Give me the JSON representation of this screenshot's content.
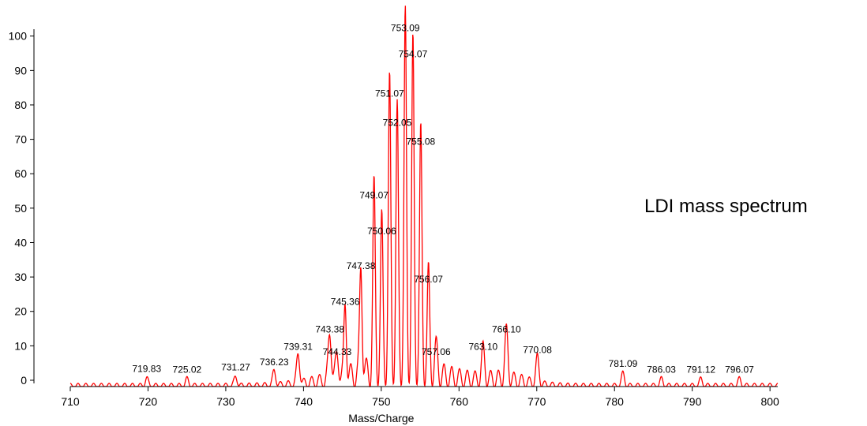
{
  "chart_data": {
    "type": "line",
    "title": "",
    "xlabel": "Mass/Charge",
    "ylabel": "",
    "xlim": [
      710,
      801
    ],
    "ylim": [
      0,
      102
    ],
    "x_ticks": [
      710,
      720,
      730,
      740,
      750,
      760,
      770,
      780,
      790,
      800
    ],
    "y_ticks": [
      0,
      10,
      20,
      30,
      40,
      50,
      60,
      70,
      80,
      90,
      100
    ],
    "line_color": "#ff0000",
    "grid": false,
    "annotation": "LDI mass spectrum",
    "peaks": [
      {
        "x": 719.83,
        "y": 1,
        "label": "719.83"
      },
      {
        "x": 725.02,
        "y": 0.8,
        "label": "725.02"
      },
      {
        "x": 731.27,
        "y": 1.5,
        "label": "731.27"
      },
      {
        "x": 736.23,
        "y": 3,
        "label": "736.23"
      },
      {
        "x": 739.31,
        "y": 7.5,
        "label": "739.31"
      },
      {
        "x": 743.38,
        "y": 12.5,
        "label": "743.38"
      },
      {
        "x": 744.33,
        "y": 6,
        "label": "744.33"
      },
      {
        "x": 745.36,
        "y": 20.5,
        "label": "745.36"
      },
      {
        "x": 747.38,
        "y": 31,
        "label": "747.38"
      },
      {
        "x": 749.07,
        "y": 51.5,
        "label": "749.07"
      },
      {
        "x": 750.06,
        "y": 41,
        "label": "750.06"
      },
      {
        "x": 751.07,
        "y": 81,
        "label": "751.07"
      },
      {
        "x": 752.05,
        "y": 72.5,
        "label": "752.05"
      },
      {
        "x": 753.09,
        "y": 100,
        "label": "753.09"
      },
      {
        "x": 754.07,
        "y": 92.5,
        "label": "754.07"
      },
      {
        "x": 755.08,
        "y": 67,
        "label": "755.08"
      },
      {
        "x": 756.07,
        "y": 27,
        "label": "756.07"
      },
      {
        "x": 757.06,
        "y": 6,
        "label": "757.06"
      },
      {
        "x": 763.1,
        "y": 7.5,
        "label": "763.10"
      },
      {
        "x": 766.1,
        "y": 12.5,
        "label": "766.10"
      },
      {
        "x": 770.08,
        "y": 6.5,
        "label": "770.08"
      },
      {
        "x": 781.09,
        "y": 2.5,
        "label": "781.09"
      },
      {
        "x": 786.03,
        "y": 0.8,
        "label": "786.03"
      },
      {
        "x": 791.12,
        "y": 0.8,
        "label": "791.12"
      },
      {
        "x": 796.07,
        "y": 0.8,
        "label": "796.07"
      }
    ]
  }
}
